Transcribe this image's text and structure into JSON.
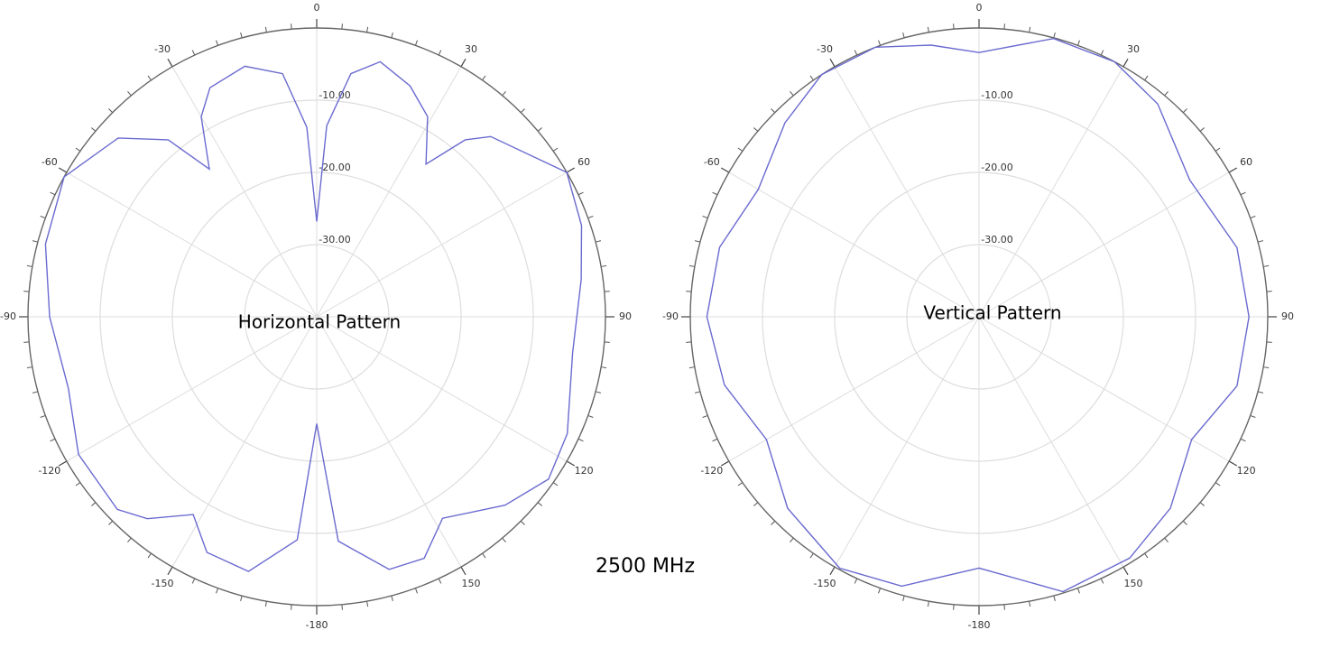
{
  "caption": "2500 MHz",
  "chart_data": [
    {
      "type": "polar",
      "title": "Horizontal Pattern",
      "color": "#6a6ad0",
      "grid": true,
      "x": [
        -180,
        -175,
        -165,
        -155,
        -148,
        -140,
        -134,
        -120,
        -106,
        -90,
        -75,
        -61,
        -48,
        -40,
        -36,
        -30,
        -25,
        -16,
        -8,
        -3,
        0,
        3,
        8,
        14,
        22,
        29,
        35.6,
        40,
        44,
        60,
        71,
        82,
        98,
        115,
        125,
        135,
        148,
        156,
        164,
        174.5
      ],
      "values": [
        -25.2,
        -9,
        -3.5,
        -4,
        -7.7,
        -3.5,
        -1.6,
        -1.9,
        -4.2,
        -3,
        -1.1,
        0,
        -3,
        -8,
        -14.7,
        -8,
        -5,
        -3.9,
        -6,
        -13.7,
        -26.8,
        -13.5,
        -6,
        -3.6,
        -5.5,
        -8.3,
        -14,
        -8,
        -5.3,
        0,
        -1.2,
        -3,
        -4.2,
        -1.7,
        -0.8,
        -3.1,
        -7.1,
        -3.4,
        -3.6,
        -8.8
      ],
      "rlim": [
        -40,
        0
      ],
      "rticks": [
        {
          "value": -30,
          "label": "-30.00"
        },
        {
          "value": -20,
          "label": "-20.00"
        },
        {
          "value": -10,
          "label": "-10.00"
        }
      ],
      "xticks": [
        0,
        30,
        60,
        90,
        120,
        150,
        -180,
        -150,
        -120,
        -90,
        -60,
        -30
      ]
    },
    {
      "type": "polar",
      "title": "Vertical Pattern",
      "color": "#6a6ad0",
      "grid": true,
      "x": [
        -180,
        -164,
        -151,
        -135,
        -120,
        -105,
        -90,
        -75,
        -60,
        -45,
        -33,
        -21,
        -10,
        0,
        15,
        28,
        40,
        57,
        75,
        90,
        105,
        120,
        135,
        148,
        163
      ],
      "values": [
        -5.2,
        -1.2,
        -0.2,
        -2.5,
        -6,
        -3.5,
        -2.3,
        -2.8,
        -4.7,
        -2,
        0,
        0,
        -1.8,
        -3.4,
        -0.1,
        0,
        -1.5,
        -5.2,
        -3,
        -2.6,
        -3,
        -6,
        -2.5,
        -0.6,
        -0.2
      ],
      "rlim": [
        -40,
        0
      ],
      "rticks": [
        {
          "value": -30,
          "label": "-30.00"
        },
        {
          "value": -20,
          "label": "-20.00"
        },
        {
          "value": -10,
          "label": "-10.00"
        }
      ],
      "xticks": [
        0,
        30,
        60,
        90,
        120,
        150,
        -180,
        -150,
        -120,
        -90,
        -60,
        -30
      ]
    }
  ]
}
